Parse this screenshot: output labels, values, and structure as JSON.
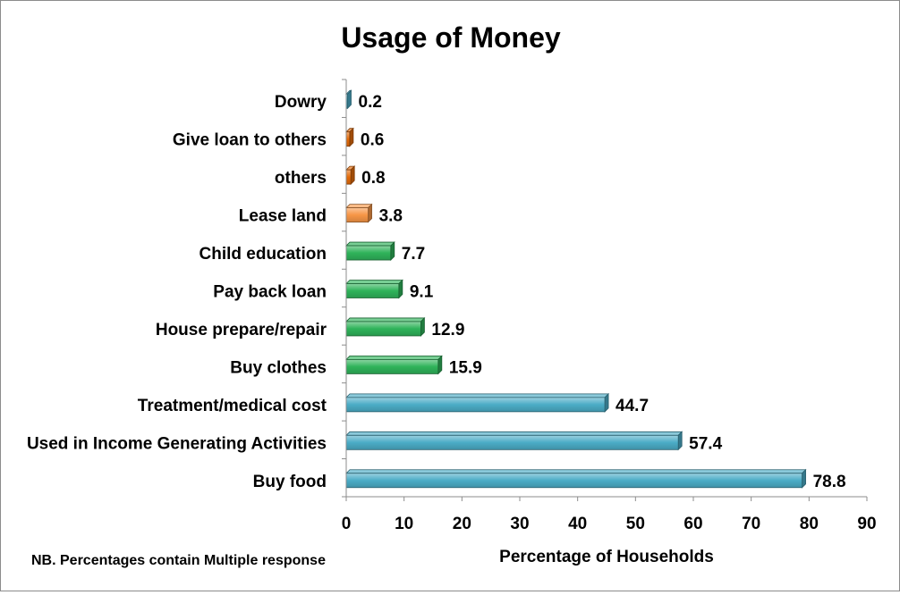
{
  "chart_data": {
    "type": "bar",
    "orientation": "horizontal",
    "title": "Usage of Money",
    "xlabel": "Percentage of Households",
    "ylabel": "",
    "xlim": [
      0,
      90
    ],
    "xticks": [
      0,
      10,
      20,
      30,
      40,
      50,
      60,
      70,
      80,
      90
    ],
    "grid": false,
    "legend": "none",
    "note": "NB. Percentages contain Multiple response",
    "categories": [
      "Dowry",
      "Give loan to others",
      "others",
      "Lease land",
      "Child education",
      "Pay back loan",
      "House prepare/repair",
      "Buy clothes",
      "Treatment/medical cost",
      "Used in Income Generating Activities",
      "Buy food"
    ],
    "values": [
      0.2,
      0.6,
      0.8,
      3.8,
      7.7,
      9.1,
      12.9,
      15.9,
      44.7,
      57.4,
      78.8
    ],
    "value_labels": [
      "0.2",
      "0.6",
      "0.8",
      "3.8",
      "7.7",
      "9.1",
      "12.9",
      "15.9",
      "44.7",
      "57.4",
      "78.8"
    ],
    "bar_colors": [
      "#4bacc6",
      "#e46c0a",
      "#e46c0a",
      "#f79646",
      "#2fb35a",
      "#2fb35a",
      "#2fb35a",
      "#2fb35a",
      "#4bacc6",
      "#4bacc6",
      "#4bacc6"
    ]
  }
}
